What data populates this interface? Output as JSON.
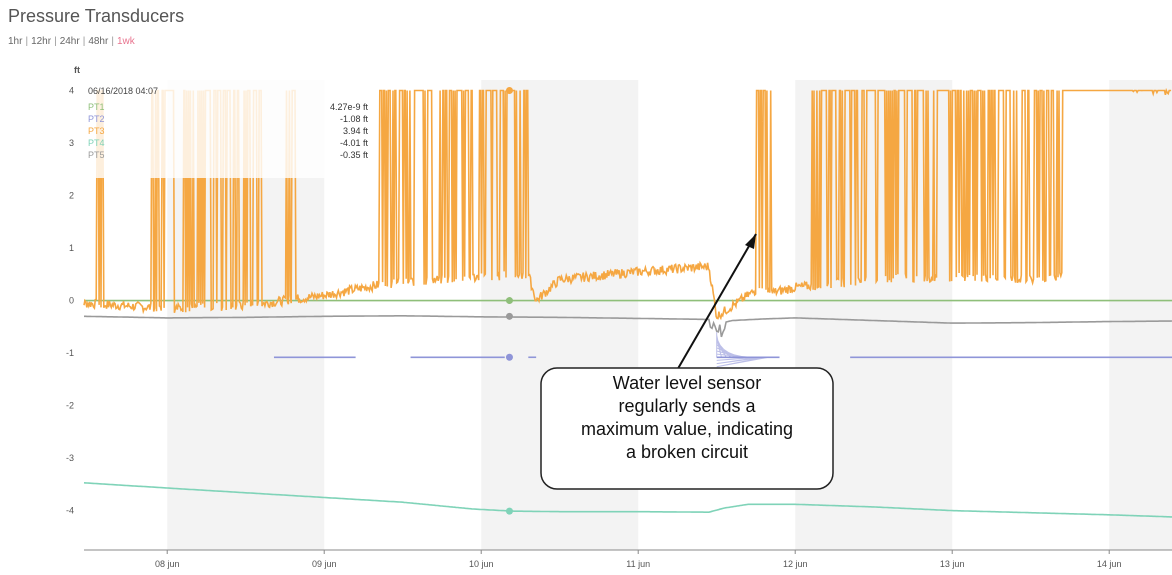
{
  "page": {
    "title": "Pressure Transducers",
    "ranges": [
      "1hr",
      "12hr",
      "24hr",
      "48hr",
      "1wk"
    ],
    "active_range": "1wk"
  },
  "tooltip": {
    "date": "06/16/2018 04:07",
    "rows": [
      {
        "name": "PT1",
        "value": "4.27e-9 ft",
        "color": "#8fbf7a"
      },
      {
        "name": "PT2",
        "value": "-1.08 ft",
        "color": "#8f95d8"
      },
      {
        "name": "PT3",
        "value": "3.94 ft",
        "color": "#f5a742"
      },
      {
        "name": "PT4",
        "value": "-4.01 ft",
        "color": "#7fd3b8"
      },
      {
        "name": "PT5",
        "value": "-0.35 ft",
        "color": "#9a9a9a"
      }
    ]
  },
  "annotation": {
    "text": "Water level sensor\nregularly sends a\nmaximum value, indicating\na broken circuit"
  },
  "chart_data": {
    "type": "line",
    "ylabel": "ft",
    "ylim": [
      -4.75,
      4.2
    ],
    "yticks": [
      4,
      3,
      2,
      1,
      0,
      -1,
      -2,
      -3,
      -4
    ],
    "xticks": [
      "08 jun",
      "09 jun",
      "10 jun",
      "11 jun",
      "12 jun",
      "13 jun",
      "14 jun"
    ],
    "xlim_days": [
      7.47,
      14.4
    ],
    "shaded_days": [
      "08 jun",
      "10 jun",
      "12 jun",
      "14 jun"
    ],
    "colors": {
      "PT1": "#8fbf7a",
      "PT2": "#8f95d8",
      "PT3": "#f5a742",
      "PT4": "#7fd3b8",
      "PT5": "#9a9a9a"
    },
    "series": [
      {
        "name": "PT1",
        "kind": "flat",
        "x": [
          7.47,
          14.4
        ],
        "y": [
          0.0,
          0.0
        ]
      },
      {
        "name": "PT5",
        "kind": "line",
        "x": [
          7.47,
          8.0,
          8.5,
          9.0,
          9.5,
          10.0,
          10.5,
          11.0,
          11.47,
          11.5,
          11.6,
          11.8,
          12.0,
          12.5,
          13.0,
          13.5,
          14.0,
          14.4
        ],
        "y": [
          -0.3,
          -0.33,
          -0.32,
          -0.3,
          -0.29,
          -0.31,
          -0.32,
          -0.34,
          -0.36,
          -0.45,
          -0.38,
          -0.35,
          -0.33,
          -0.38,
          -0.43,
          -0.42,
          -0.4,
          -0.39
        ]
      },
      {
        "name": "PT2",
        "kind": "segments",
        "segments": [
          [
            8.68,
            9.2
          ],
          [
            9.55,
            10.15
          ],
          [
            10.3,
            10.35
          ],
          [
            11.5,
            11.9
          ],
          [
            12.35,
            14.4
          ]
        ],
        "y": -1.08
      },
      {
        "name": "PT4",
        "kind": "line",
        "x": [
          7.47,
          8.0,
          8.5,
          9.0,
          9.5,
          9.95,
          10.2,
          10.5,
          11.0,
          11.45,
          11.55,
          11.7,
          12.0,
          12.5,
          13.0,
          13.5,
          14.0,
          14.4
        ],
        "y": [
          -3.47,
          -3.57,
          -3.66,
          -3.75,
          -3.84,
          -3.97,
          -4.01,
          -4.02,
          -4.02,
          -4.03,
          -3.95,
          -3.88,
          -3.88,
          -3.93,
          -4.0,
          -4.04,
          -4.08,
          -4.12
        ]
      },
      {
        "name": "PT3",
        "kind": "noisy",
        "baseline_x": [
          7.47,
          8.0,
          8.5,
          9.0,
          9.35,
          9.5,
          10.0,
          10.3,
          10.35,
          10.5,
          11.0,
          11.45,
          11.5,
          11.6,
          11.75,
          11.85,
          12.0,
          12.5,
          13.0,
          13.5,
          13.7,
          14.0,
          14.4
        ],
        "baseline_y": [
          -0.05,
          -0.15,
          -0.1,
          0.1,
          0.3,
          0.35,
          0.45,
          0.5,
          0.0,
          0.4,
          0.55,
          0.65,
          -0.3,
          -0.1,
          0.2,
          0.15,
          0.25,
          0.4,
          0.45,
          0.4,
          0.45,
          4.0,
          4.0
        ],
        "max": 4.0,
        "spike_bands": [
          [
            7.55,
            7.6
          ],
          [
            7.9,
            8.05
          ],
          [
            8.1,
            8.6
          ],
          [
            8.75,
            8.82
          ],
          [
            9.35,
            10.3
          ],
          [
            11.75,
            11.85
          ],
          [
            12.1,
            13.7
          ],
          [
            14.15,
            14.4
          ]
        ],
        "cursor_day": 10.18
      }
    ]
  }
}
